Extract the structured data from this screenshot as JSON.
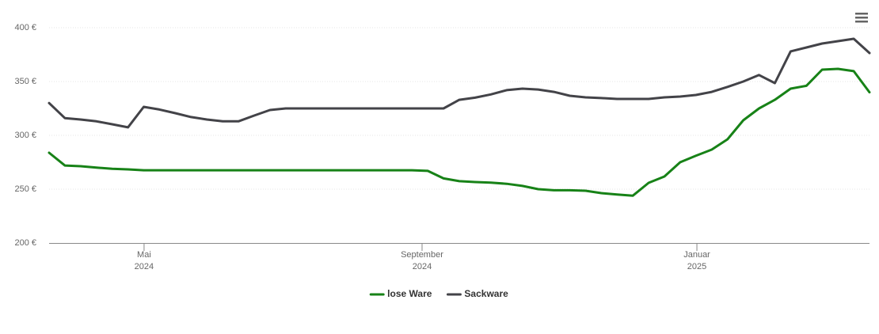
{
  "chart_data": {
    "type": "line",
    "categories": [
      null,
      null,
      null,
      null,
      null,
      null,
      null,
      null,
      null,
      null,
      null,
      null,
      null,
      null,
      null,
      null,
      null,
      null,
      null,
      null,
      null,
      null,
      null,
      null,
      null,
      null,
      null,
      null,
      null,
      null,
      null,
      null,
      null,
      null,
      null,
      null,
      null,
      null,
      null,
      null,
      null,
      null,
      null,
      null,
      null,
      null,
      null,
      null,
      null,
      null,
      null,
      null,
      null
    ],
    "series": [
      {
        "name": "lose Ware",
        "color": "#178217",
        "values": [
          283.8,
          272,
          271.3,
          270,
          269,
          268.4,
          267.6,
          267.6,
          267.6,
          267.6,
          267.6,
          267.6,
          267.6,
          267.6,
          267.6,
          267.6,
          267.6,
          267.6,
          267.6,
          267.6,
          267.6,
          267.6,
          267.6,
          267.6,
          267,
          260,
          257.4,
          256.6,
          256,
          255,
          253,
          250,
          249,
          249,
          248.5,
          246.3,
          245,
          244,
          255.9,
          261.8,
          275,
          281,
          286.8,
          296.3,
          314,
          325,
          333,
          343.4,
          346,
          361,
          361.8,
          359.6,
          340
        ]
      },
      {
        "name": "Sackware",
        "color": "#434348",
        "values": [
          330,
          316,
          314.7,
          313,
          310.3,
          307.4,
          326.5,
          324,
          320.6,
          317,
          314.7,
          313,
          313,
          318.4,
          323.5,
          325,
          325,
          325,
          325,
          325,
          325,
          325,
          325,
          325,
          325,
          325,
          333,
          335,
          338,
          342,
          343.4,
          342.6,
          340.4,
          336.8,
          335.3,
          334.6,
          333.8,
          333.8,
          333.8,
          335.3,
          336,
          337.5,
          340.4,
          345,
          350,
          356,
          348.5,
          378,
          381.6,
          385.3,
          387.5,
          389.7,
          376.5
        ]
      }
    ],
    "ylim": [
      200,
      400
    ],
    "yticks": [
      {
        "value": 200,
        "label": "200 €"
      },
      {
        "value": 250,
        "label": "250 €"
      },
      {
        "value": 300,
        "label": "300 €"
      },
      {
        "value": 350,
        "label": "350 €"
      },
      {
        "value": 400,
        "label": "400 €"
      }
    ],
    "xticks": [
      {
        "value": 6.02,
        "label": "Mai 2024"
      },
      {
        "value": 23.64,
        "label": "September 2024"
      },
      {
        "value": 41.06,
        "label": "Januar 2025"
      }
    ],
    "grid": true,
    "legend": "bottom"
  }
}
